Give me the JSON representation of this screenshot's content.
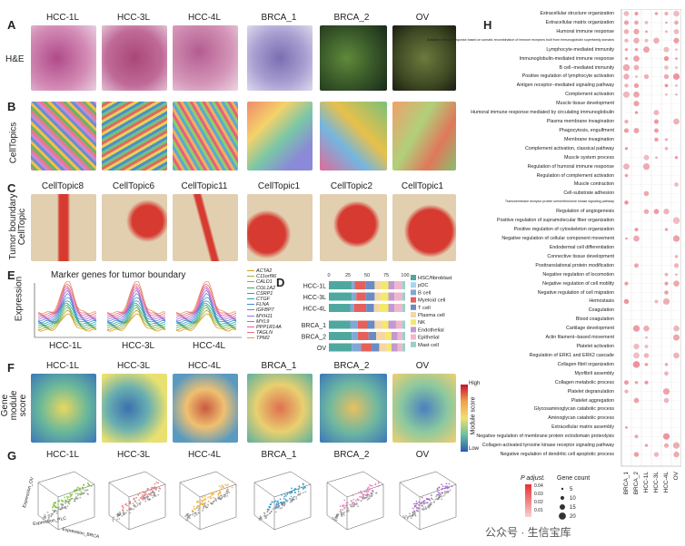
{
  "panel_letters": {
    "A": "A",
    "B": "B",
    "C": "C",
    "D": "D",
    "E": "E",
    "F": "F",
    "G": "G",
    "H": "H"
  },
  "samples": [
    "HCC-1L",
    "HCC-3L",
    "HCC-4L",
    "BRCA_1",
    "BRCA_2",
    "OV"
  ],
  "row_labels": {
    "he": "H&E",
    "celltopics": "CellTopics",
    "tumor_boundary": "Tumor boundary CellTopic",
    "gene_module": "Gene module score",
    "expression": "Expression"
  },
  "celltopic_titles": [
    "CellTopic8",
    "CellTopic6",
    "CellTopic11",
    "CellTopic1",
    "CellTopic2",
    "CellTopic1"
  ],
  "marker": {
    "title": "Marker genes for tumor boundary",
    "samples": [
      "HCC-1L",
      "HCC-3L",
      "HCC-4L"
    ],
    "genes": [
      "ACTA2",
      "C11orf96",
      "CALD1",
      "COL1A2",
      "CSRP1",
      "CTGF",
      "FLNA",
      "IGFBP7",
      "MYH11",
      "MYL9",
      "PPP1R14A",
      "TAGLN",
      "TPM2"
    ],
    "colors": [
      "#d4a017",
      "#a9a93a",
      "#7bb04c",
      "#3aa66a",
      "#2fa58e",
      "#2a9fb0",
      "#3f8fcf",
      "#6f7fd6",
      "#9a6fd0",
      "#c164c0",
      "#e05fa0",
      "#e8707a",
      "#e8915a"
    ]
  },
  "chart_data": {
    "type": "bar",
    "stacked": true,
    "categories": [
      "HCC-1L",
      "HCC-3L",
      "HCC-4L",
      "BRCA_1",
      "BRCA_2",
      "OV"
    ],
    "xticks": [
      "0",
      "25",
      "50",
      "75",
      "100"
    ],
    "series": [
      {
        "name": "HSC/fibroblast",
        "color": "#4fa8a0",
        "values": [
          30,
          30,
          28,
          28,
          30,
          30
        ]
      },
      {
        "name": "pDC",
        "color": "#a9d4f0",
        "values": [
          0,
          0,
          0,
          0,
          0,
          0
        ]
      },
      {
        "name": "B cell",
        "color": "#7fa8d6",
        "values": [
          4,
          6,
          5,
          10,
          8,
          12
        ]
      },
      {
        "name": "Myeloid cell",
        "color": "#e5605a",
        "values": [
          14,
          12,
          16,
          12,
          14,
          14
        ]
      },
      {
        "name": "T cell",
        "color": "#6a8cc4",
        "values": [
          12,
          12,
          10,
          10,
          10,
          10
        ]
      },
      {
        "name": "Plasma cell",
        "color": "#f6d6a4",
        "values": [
          8,
          8,
          7,
          10,
          12,
          10
        ]
      },
      {
        "name": "NK",
        "color": "#f3e96a",
        "values": [
          10,
          10,
          12,
          8,
          8,
          6
        ]
      },
      {
        "name": "Endothelial",
        "color": "#c09ad0",
        "values": [
          8,
          8,
          8,
          10,
          8,
          8
        ]
      },
      {
        "name": "Epithelial",
        "color": "#f2b6cc",
        "values": [
          10,
          10,
          10,
          8,
          6,
          6
        ]
      },
      {
        "name": "Mast cell",
        "color": "#9ad0c8",
        "values": [
          4,
          4,
          4,
          4,
          4,
          4
        ]
      }
    ]
  },
  "module_legend": {
    "title": "Module score",
    "high": "High",
    "low": "Low"
  },
  "go": {
    "terms": [
      "Extracellular structure organization",
      "Extracellular matrix organization",
      "Humoral immune response",
      "Adaptive immune response based on somatic recombination of immune receptors built from immunoglobulin superfamily domains",
      "Lymphocyte-mediated immunity",
      "Immunoglobulin-mediated immune response",
      "B cell−mediated immunity",
      "Positive regulation of lymphocyte activation",
      "Antigen receptor−mediated signaling pathway",
      "Complement activation",
      "Muscle tissue development",
      "Humoral immune response mediated by circulating immunoglobulin",
      "Plasma membrane invagination",
      "Phagocytosis, engulfment",
      "Membrane invagination",
      "Complement activation, classical pathway",
      "Muscle system process",
      "Regulation of humoral immune response",
      "Regulation of complement activation",
      "Muscle contraction",
      "Cell-substrate adhesion",
      "Transmembrane receptor protein serine/threonine kinase signaling pathway",
      "Regulation of angiogenesis",
      "Positive regulation of supramolecular fiber organization",
      "Positive regulation of cytoskeleton organization",
      "Negative regulation of cellular component movement",
      "Endodermal cell differentiation",
      "Connective tissue development",
      "Posttranslational protein modification",
      "Negative regulation of locomotion",
      "Negative regulation of cell motility",
      "Negative regulation of cell migration",
      "Hemostasis",
      "Coagulation",
      "Blood coagulation",
      "Cartilage development",
      "Actin filament−based movement",
      "Platelet activation",
      "Regulation of ERK1 and ERK2 cascade",
      "Collagen fibril organization",
      "Myofibril assembly",
      "Collagen metabolic process",
      "Platelet degranulation",
      "Platelet aggregation",
      "Glycosaminoglycan catabolic process",
      "Aminoglycan catabolic process",
      "Extracellular matrix assembly",
      "Negative regulation of membrane protein ectodomain proteolysis",
      "Collagen-activated tyrosine kinase receptor signaling pathway",
      "Negative regulation of dendritic cell apoptotic process"
    ],
    "columns": [
      "BRCA_1",
      "BRCA_2",
      "HCC-1L",
      "HCC-3L",
      "HCC-4L",
      "OV"
    ],
    "legend_p": "P adjust.",
    "legend_p_ticks": [
      "0.04",
      "0.03",
      "0.02",
      "0.01"
    ],
    "legend_count": "Gene count",
    "legend_count_ticks": [
      "5",
      "10",
      "15",
      "20"
    ]
  },
  "scatter_axes": {
    "x": "Expression_BRCA",
    "y": "Expression_PLC",
    "z": "Expression_OV"
  },
  "scatter_colors": [
    "#7cc23a",
    "#e0787a",
    "#f0b030",
    "#2a90c8",
    "#e878b8",
    "#a060c8"
  ],
  "watermark": "公众号 · 生信宝库"
}
